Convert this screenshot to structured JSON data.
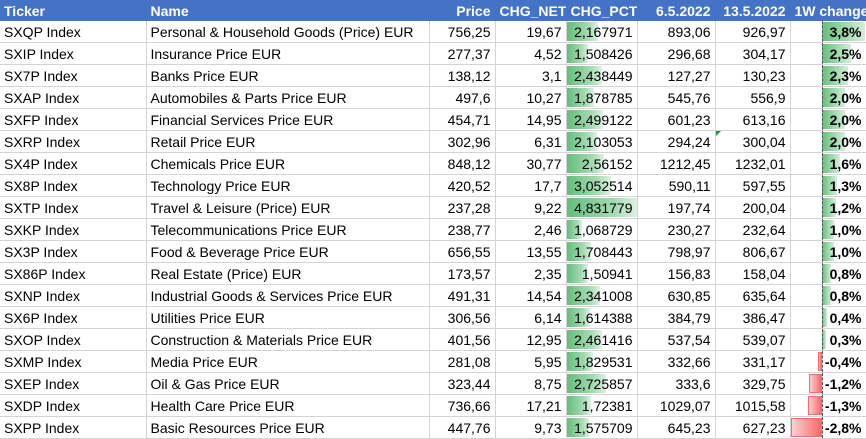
{
  "headers": {
    "ticker": "Ticker",
    "name": "Name",
    "price": "Price",
    "chg_net": "CHG_NET",
    "chg_pct": "CHG_PCT_",
    "d1": "6.5.2022",
    "d2": "13.5.2022",
    "wk": "1W change"
  },
  "colors": {
    "header_bg": "#4472c4",
    "positive_bar": "#63be7b",
    "negative_bar": "#f8696b",
    "gridline": "#d4d4d4"
  },
  "scales": {
    "chg_pct_max": 4.831779,
    "wk_min": -2.8,
    "wk_max": 3.8
  },
  "rows": [
    {
      "ticker": "SXQP Index",
      "name": "Personal & Household Goods (Price) EUR",
      "price": "756,25",
      "chg_net": "19,67",
      "chg_pct": "2,167971",
      "chg_pct_value": 2.167971,
      "d1": "893,06",
      "d2": "926,97",
      "wk": "3,8%",
      "wk_value": 3.8
    },
    {
      "ticker": "SXIP Index",
      "name": "Insurance Price EUR",
      "price": "277,37",
      "chg_net": "4,52",
      "chg_pct": "1,508426",
      "chg_pct_value": 1.508426,
      "d1": "296,68",
      "d2": "304,17",
      "wk": "2,5%",
      "wk_value": 2.5
    },
    {
      "ticker": "SX7P Index",
      "name": "Banks Price EUR",
      "price": "138,12",
      "chg_net": "3,1",
      "chg_pct": "2,438449",
      "chg_pct_value": 2.438449,
      "d1": "127,27",
      "d2": "130,23",
      "wk": "2,3%",
      "wk_value": 2.3
    },
    {
      "ticker": "SXAP Index",
      "name": "Automobiles & Parts Price EUR",
      "price": "497,6",
      "chg_net": "10,27",
      "chg_pct": "1,878785",
      "chg_pct_value": 1.878785,
      "d1": "545,76",
      "d2": "556,9",
      "wk": "2,0%",
      "wk_value": 2.0
    },
    {
      "ticker": "SXFP Index",
      "name": "Financial Services Price EUR",
      "price": "454,71",
      "chg_net": "14,95",
      "chg_pct": "2,499122",
      "chg_pct_value": 2.499122,
      "d1": "601,23",
      "d2": "613,16",
      "wk": "2,0%",
      "wk_value": 2.0
    },
    {
      "ticker": "SXRP Index",
      "name": "Retail Price EUR",
      "price": "302,96",
      "chg_net": "6,31",
      "chg_pct": "2,103053",
      "chg_pct_value": 2.103053,
      "d1": "294,24",
      "d2": "300,04",
      "wk": "2,0%",
      "wk_value": 2.0,
      "flag": true
    },
    {
      "ticker": "SX4P Index",
      "name": "Chemicals Price EUR",
      "price": "848,12",
      "chg_net": "30,77",
      "chg_pct": "2,56152",
      "chg_pct_value": 2.56152,
      "d1": "1212,45",
      "d2": "1232,01",
      "wk": "1,6%",
      "wk_value": 1.6
    },
    {
      "ticker": "SX8P Index",
      "name": "Technology Price EUR",
      "price": "420,52",
      "chg_net": "17,7",
      "chg_pct": "3,052514",
      "chg_pct_value": 3.052514,
      "d1": "590,11",
      "d2": "597,55",
      "wk": "1,3%",
      "wk_value": 1.3
    },
    {
      "ticker": "SXTP Index",
      "name": "Travel & Leisure (Price) EUR",
      "price": "237,28",
      "chg_net": "9,22",
      "chg_pct": "4,831779",
      "chg_pct_value": 4.831779,
      "d1": "197,74",
      "d2": "200,04",
      "wk": "1,2%",
      "wk_value": 1.2
    },
    {
      "ticker": "SXKP Index",
      "name": "Telecommunications Price EUR",
      "price": "238,77",
      "chg_net": "2,46",
      "chg_pct": "1,068729",
      "chg_pct_value": 1.068729,
      "d1": "230,27",
      "d2": "232,64",
      "wk": "1,0%",
      "wk_value": 1.0
    },
    {
      "ticker": "SX3P Index",
      "name": "Food & Beverage Price EUR",
      "price": "656,55",
      "chg_net": "13,55",
      "chg_pct": "1,708443",
      "chg_pct_value": 1.708443,
      "d1": "798,97",
      "d2": "806,67",
      "wk": "1,0%",
      "wk_value": 1.0
    },
    {
      "ticker": "SX86P Index",
      "name": "Real Estate (Price) EUR",
      "price": "173,57",
      "chg_net": "2,35",
      "chg_pct": "1,50941",
      "chg_pct_value": 1.50941,
      "d1": "156,83",
      "d2": "158,04",
      "wk": "0,8%",
      "wk_value": 0.8
    },
    {
      "ticker": "SXNP Index",
      "name": "Industrial Goods & Services Price EUR",
      "price": "491,31",
      "chg_net": "14,54",
      "chg_pct": "2,341008",
      "chg_pct_value": 2.341008,
      "d1": "630,85",
      "d2": "635,64",
      "wk": "0,8%",
      "wk_value": 0.8
    },
    {
      "ticker": "SX6P Index",
      "name": "Utilities Price EUR",
      "price": "306,56",
      "chg_net": "6,14",
      "chg_pct": "1,614388",
      "chg_pct_value": 1.614388,
      "d1": "384,79",
      "d2": "386,47",
      "wk": "0,4%",
      "wk_value": 0.4
    },
    {
      "ticker": "SXOP Index",
      "name": "Construction & Materials Price EUR",
      "price": "401,56",
      "chg_net": "12,95",
      "chg_pct": "2,461416",
      "chg_pct_value": 2.461416,
      "d1": "537,54",
      "d2": "539,07",
      "wk": "0,3%",
      "wk_value": 0.3
    },
    {
      "ticker": "SXMP Index",
      "name": "Media Price EUR",
      "price": "281,08",
      "chg_net": "5,95",
      "chg_pct": "1,829531",
      "chg_pct_value": 1.829531,
      "d1": "332,66",
      "d2": "331,17",
      "wk": "-0,4%",
      "wk_value": -0.4
    },
    {
      "ticker": "SXEP Index",
      "name": "Oil & Gas Price EUR",
      "price": "323,44",
      "chg_net": "8,75",
      "chg_pct": "2,725857",
      "chg_pct_value": 2.725857,
      "d1": "333,6",
      "d2": "329,75",
      "wk": "-1,2%",
      "wk_value": -1.2
    },
    {
      "ticker": "SXDP Index",
      "name": "Health Care Price EUR",
      "price": "736,66",
      "chg_net": "17,21",
      "chg_pct": "1,72381",
      "chg_pct_value": 1.72381,
      "d1": "1029,07",
      "d2": "1015,58",
      "wk": "-1,3%",
      "wk_value": -1.3
    },
    {
      "ticker": "SXPP Index",
      "name": "Basic Resources Price EUR",
      "price": "447,76",
      "chg_net": "9,73",
      "chg_pct": "1,575709",
      "chg_pct_value": 1.575709,
      "d1": "645,23",
      "d2": "627,23",
      "wk": "-2,8%",
      "wk_value": -2.8
    }
  ]
}
